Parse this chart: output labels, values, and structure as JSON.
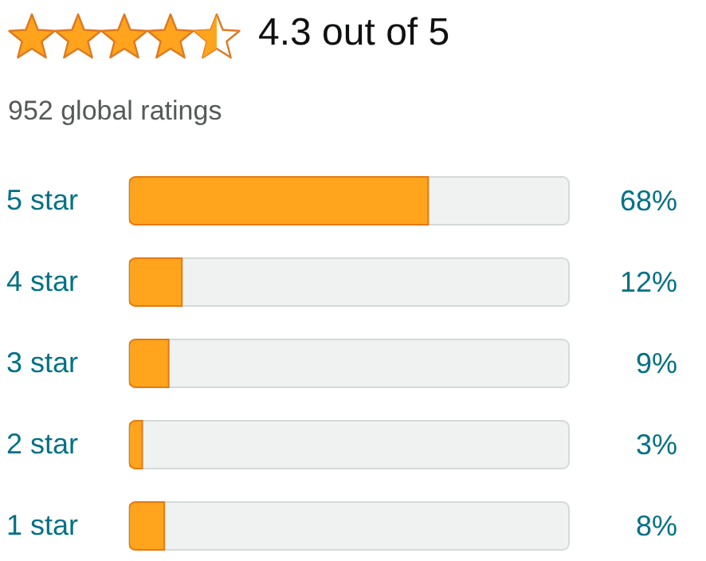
{
  "chart_data": {
    "type": "bar",
    "orientation": "horizontal",
    "title": "4.3 out of 5",
    "subtitle": "952 global ratings",
    "categories": [
      "5 star",
      "4 star",
      "3 star",
      "2 star",
      "1 star"
    ],
    "values": [
      68,
      12,
      9,
      3,
      8
    ],
    "value_labels": [
      "68%",
      "12%",
      "9%",
      "3%",
      "8%"
    ],
    "color": "#ffa41c",
    "xlim": [
      0,
      100
    ],
    "tick_labels": "y"
  }
}
